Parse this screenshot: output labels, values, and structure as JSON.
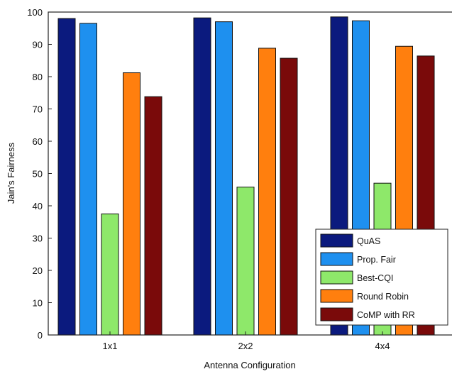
{
  "chart_data": {
    "type": "bar",
    "title": "",
    "xlabel": "Antenna Configuration",
    "ylabel": "Jain's Fairness",
    "ylim": [
      0,
      100
    ],
    "yticks": [
      0,
      10,
      20,
      30,
      40,
      50,
      60,
      70,
      80,
      90,
      100
    ],
    "categories": [
      "1x1",
      "2x2",
      "4x4"
    ],
    "series": [
      {
        "name": "QuAS",
        "color": "#0b1a7e",
        "values": [
          98,
          98.2,
          98.5
        ]
      },
      {
        "name": "Prop. Fair",
        "color": "#1e90ef",
        "values": [
          96.5,
          97,
          97.3
        ]
      },
      {
        "name": "Best-CQI",
        "color": "#8ee86a",
        "values": [
          37.5,
          45.8,
          47
        ]
      },
      {
        "name": "Round Robin",
        "color": "#ff7f0e",
        "values": [
          81.2,
          88.8,
          89.4
        ]
      },
      {
        "name": "CoMP with RR",
        "color": "#7a0a0a",
        "values": [
          73.8,
          85.7,
          86.4
        ]
      }
    ],
    "legend_position": "bottom-right",
    "grid": false
  }
}
